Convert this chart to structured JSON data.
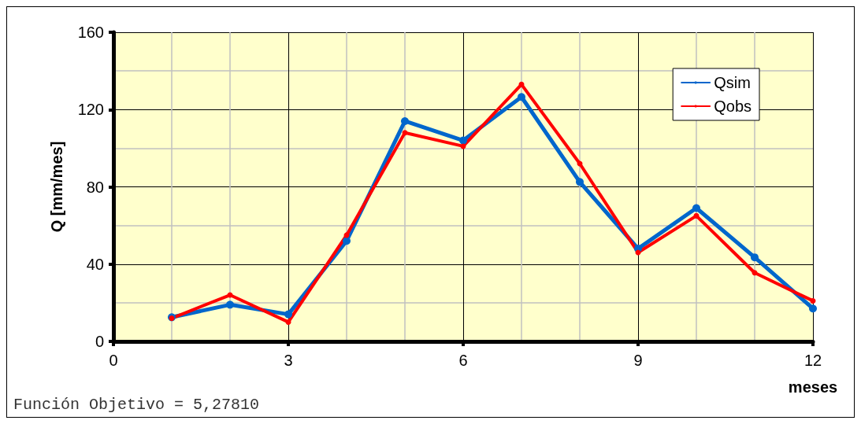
{
  "chart_data": {
    "type": "line",
    "xlabel": "meses",
    "ylabel": "Q [mm/mes]",
    "x": [
      1,
      2,
      3,
      4,
      5,
      6,
      7,
      8,
      9,
      10,
      11,
      12
    ],
    "series": [
      {
        "name": "Qsim",
        "color": "#0066cc",
        "values": [
          12.5,
          19,
          14,
          52,
          114,
          104,
          126.5,
          82.5,
          48,
          69,
          43.5,
          17
        ]
      },
      {
        "name": "Qobs",
        "color": "#ff0000",
        "values": [
          12,
          24,
          10,
          55,
          108,
          101,
          133,
          92,
          46,
          65,
          35.5,
          21
        ]
      }
    ],
    "xlim": [
      0,
      12
    ],
    "xticks": [
      0,
      3,
      6,
      9,
      12
    ],
    "ylim": [
      0,
      160
    ],
    "yticks": [
      0,
      40,
      80,
      120,
      160
    ],
    "grid": true,
    "legend": "top right",
    "marker": "circle",
    "line_style": "solid",
    "annotations": [
      "Función Objetivo = 5,27810"
    ]
  }
}
